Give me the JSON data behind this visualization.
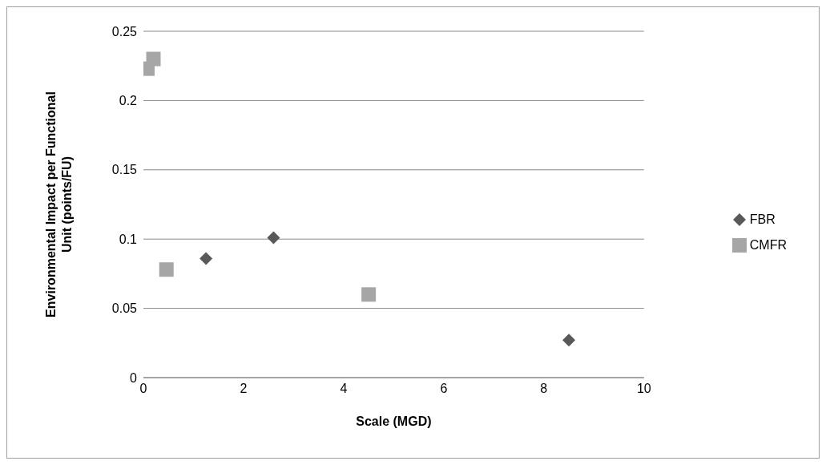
{
  "chart_data": {
    "type": "scatter",
    "xlabel": "Scale (MGD)",
    "ylabel": "Environmental Impact per Functional Unit (points/FU)",
    "xlim": [
      0,
      10
    ],
    "xticks": [
      0,
      2,
      4,
      6,
      8,
      10
    ],
    "ylim": [
      0,
      0.25
    ],
    "yticks": [
      0,
      0.05,
      0.1,
      0.15,
      0.2,
      0.25
    ],
    "grid": "y",
    "legend": "right",
    "series": [
      {
        "name": "FBR",
        "color": "#595959",
        "marker": "diamond",
        "x": [
          1.25,
          2.6,
          8.5
        ],
        "values": [
          0.086,
          0.101,
          0.027
        ]
      },
      {
        "name": "CMFR",
        "color": "#a6a6a6",
        "marker": "square",
        "x": [
          0.08,
          0.2,
          0.46,
          4.5
        ],
        "values": [
          0.223,
          0.23,
          0.078,
          0.06
        ]
      }
    ]
  }
}
